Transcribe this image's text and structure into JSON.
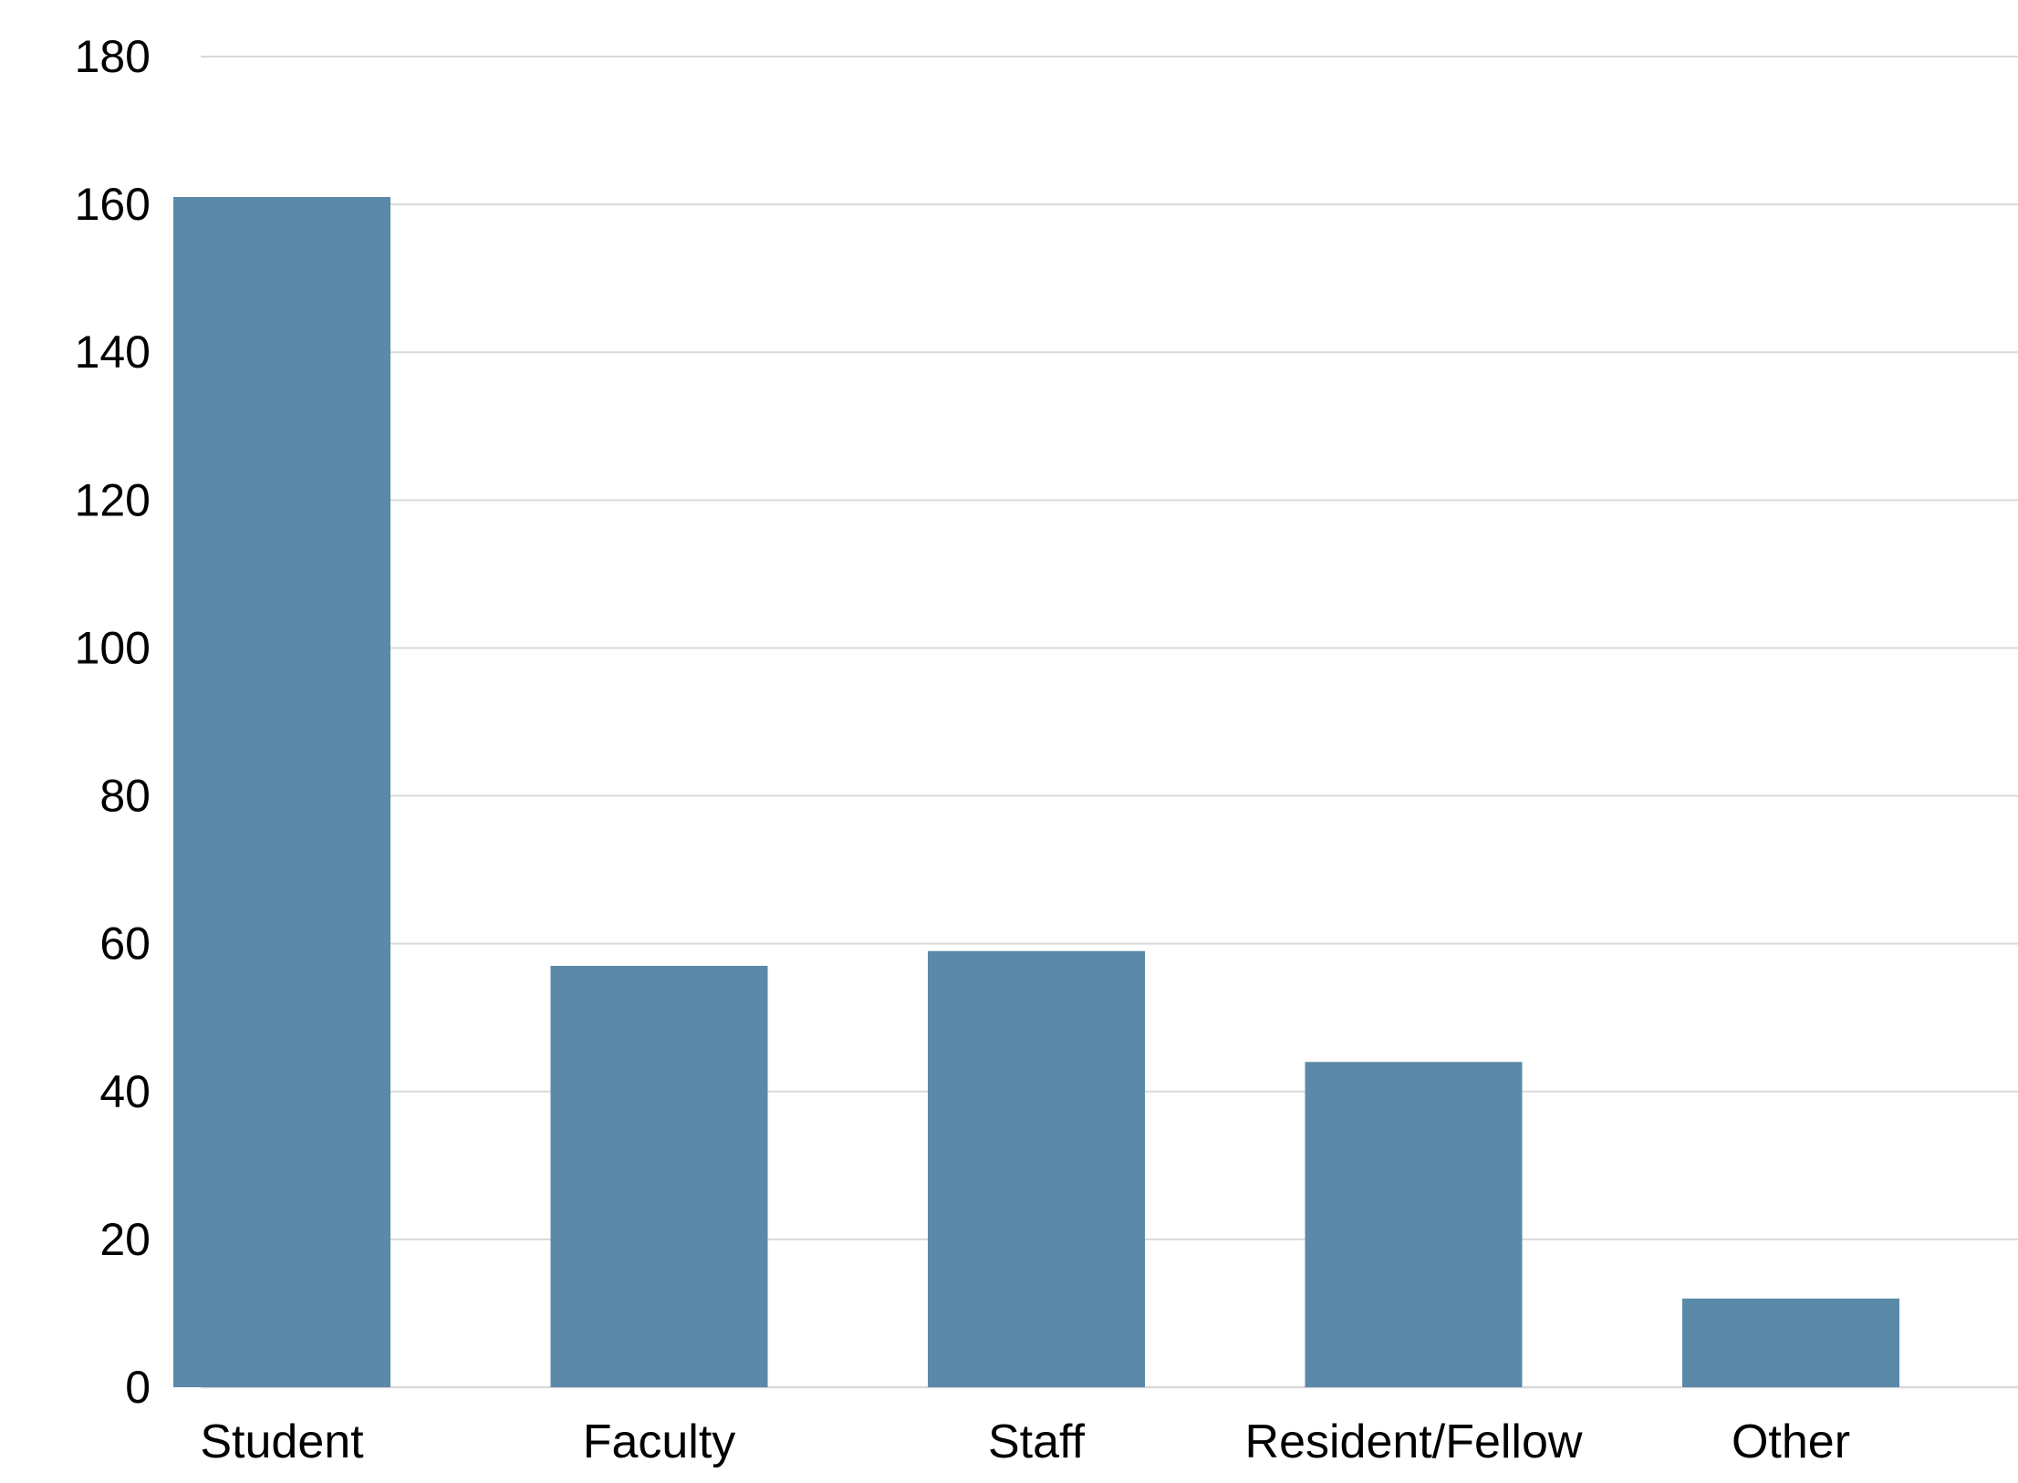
{
  "chart_data": {
    "type": "bar",
    "categories": [
      "Student",
      "Faculty",
      "Staff",
      "Resident/Fellow",
      "Other"
    ],
    "values": [
      161,
      57,
      59,
      44,
      12
    ],
    "ylim": [
      0,
      180
    ],
    "yticks": [
      0,
      20,
      40,
      60,
      80,
      100,
      120,
      140,
      160,
      180
    ],
    "grid": true,
    "bar_color": "#5a8aa8",
    "grid_color": "#d9d9d9"
  }
}
